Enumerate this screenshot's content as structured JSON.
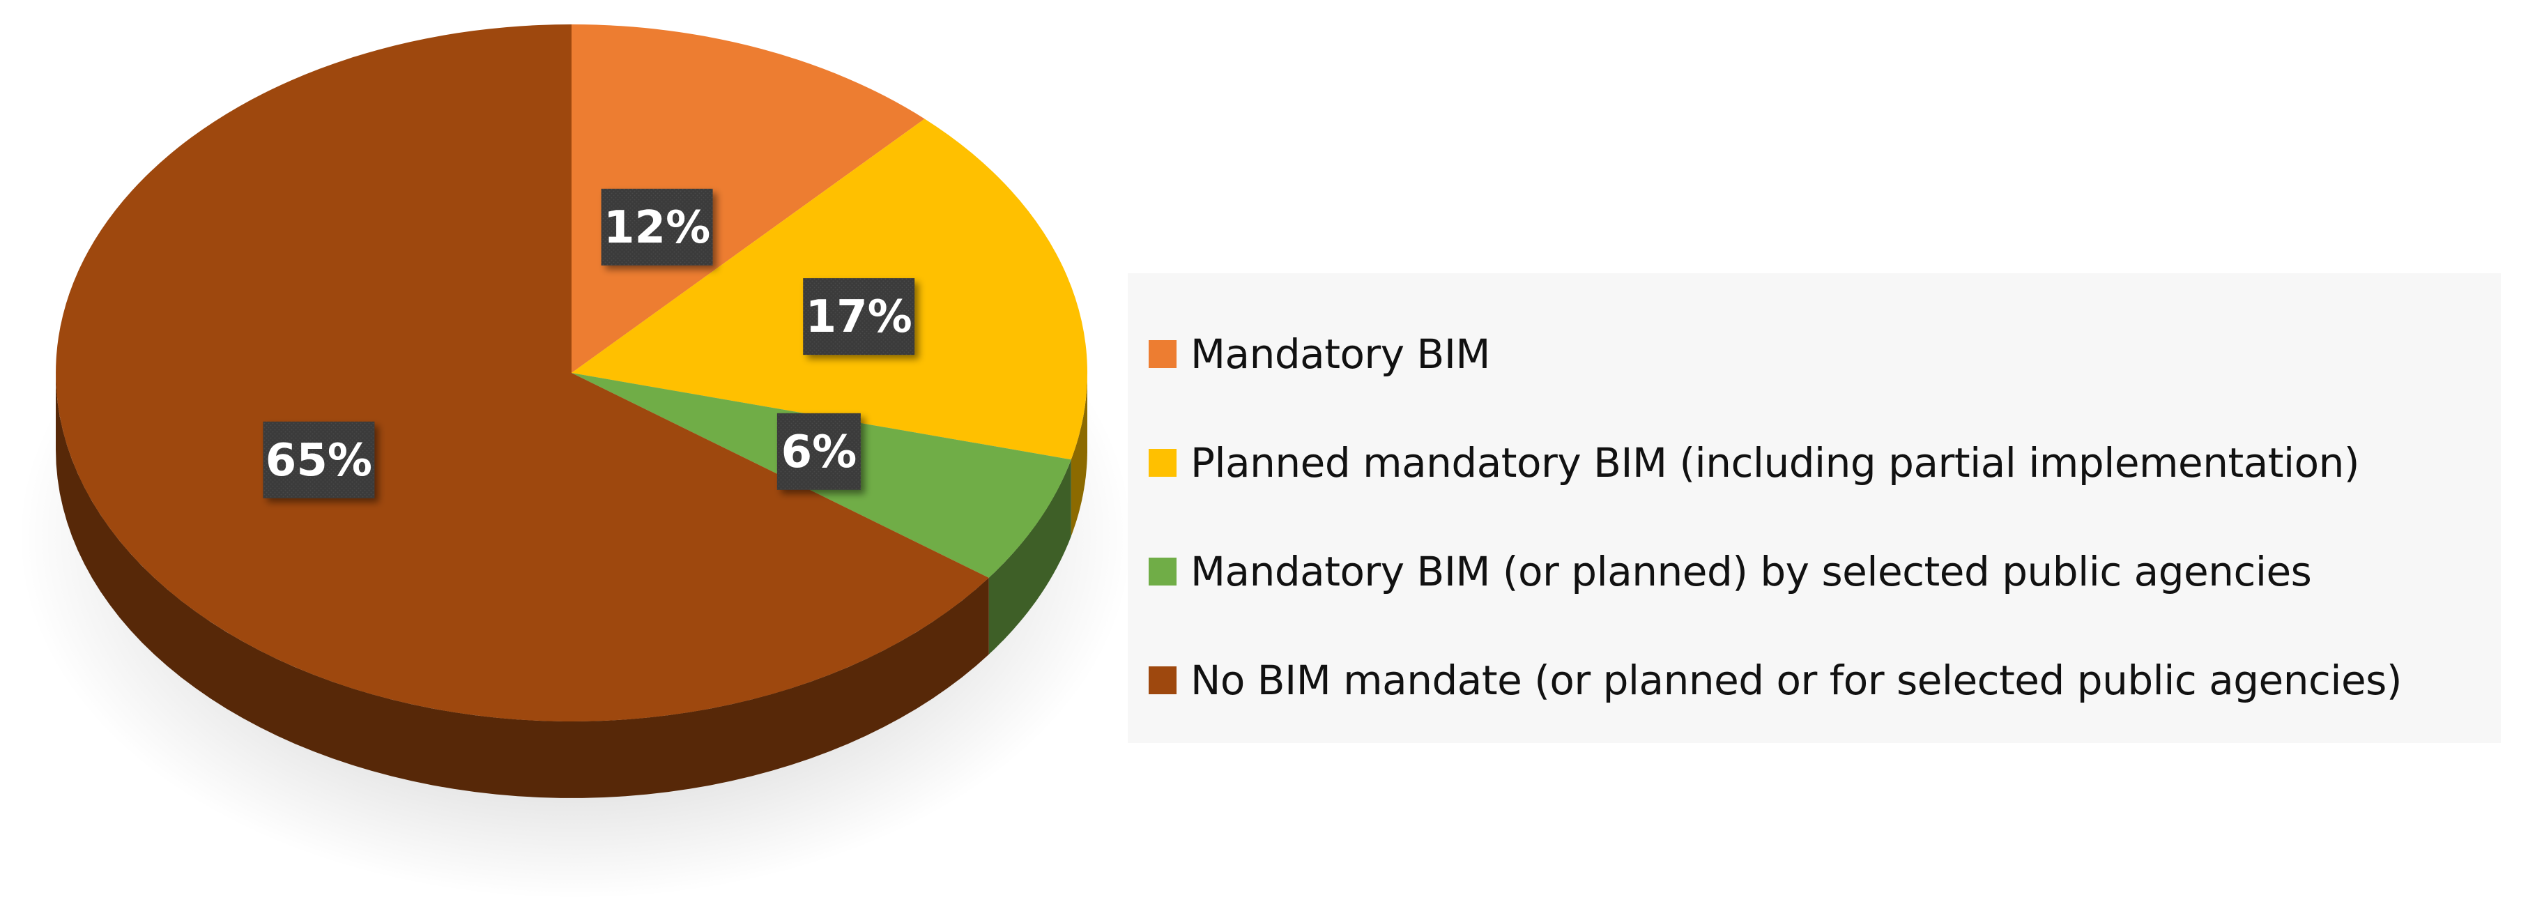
{
  "chart_data": {
    "type": "pie",
    "style": "3d",
    "title": "",
    "slices": [
      {
        "label": "Mandatory BIM",
        "value": 12,
        "display": "12%",
        "color": "#ed7d31"
      },
      {
        "label": "Planned mandatory BIM (including partial implementation)",
        "value": 17,
        "display": "17%",
        "color": "#ffc000"
      },
      {
        "label": "Mandatory BIM (or planned) by selected public agencies",
        "value": 6,
        "display": "6%",
        "color": "#70ad47"
      },
      {
        "label": "No BIM mandate (or planned or for selected public agencies)",
        "value": 65,
        "display": "65%",
        "color": "#9e480e"
      }
    ],
    "legend_position": "right",
    "data_label_style": "dark-box-white-text"
  }
}
